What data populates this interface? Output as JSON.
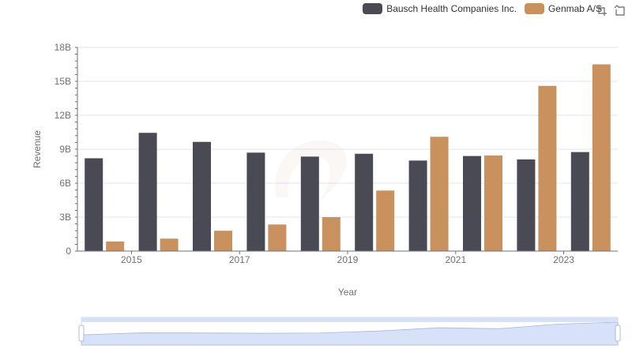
{
  "legend": {
    "items": [
      {
        "label": "Bausch Health Companies Inc.",
        "color": "#4a4a55"
      },
      {
        "label": "Genmab A/S",
        "color": "#c8915e"
      }
    ]
  },
  "toolbox": {
    "icons": [
      "zoom-icon",
      "restore-icon"
    ]
  },
  "chart_data": {
    "type": "bar",
    "x": [
      2014,
      2015,
      2016,
      2017,
      2018,
      2019,
      2020,
      2021,
      2022,
      2023
    ],
    "x_tick_labels": [
      "2015",
      "2017",
      "2019",
      "2021",
      "2023"
    ],
    "xlabel": "Year",
    "ylabel": "Revenue",
    "ylim": [
      0,
      18
    ],
    "y_unit": "B",
    "y_tick_labels": [
      "0",
      "3B",
      "6B",
      "9B",
      "12B",
      "15B",
      "18B"
    ],
    "grid": true,
    "legend_position": "top-right",
    "series": [
      {
        "name": "Bausch Health Companies Inc.",
        "color": "#4a4a55",
        "values": [
          8.2,
          10.45,
          9.65,
          8.7,
          8.35,
          8.6,
          8.0,
          8.4,
          8.1,
          8.75
        ]
      },
      {
        "name": "Genmab A/S",
        "color": "#c8915e",
        "values": [
          0.85,
          1.1,
          1.8,
          2.35,
          3.0,
          5.35,
          10.1,
          8.45,
          14.6,
          16.5
        ]
      }
    ],
    "data_zoom": {
      "range_percent": [
        0,
        100
      ]
    }
  }
}
